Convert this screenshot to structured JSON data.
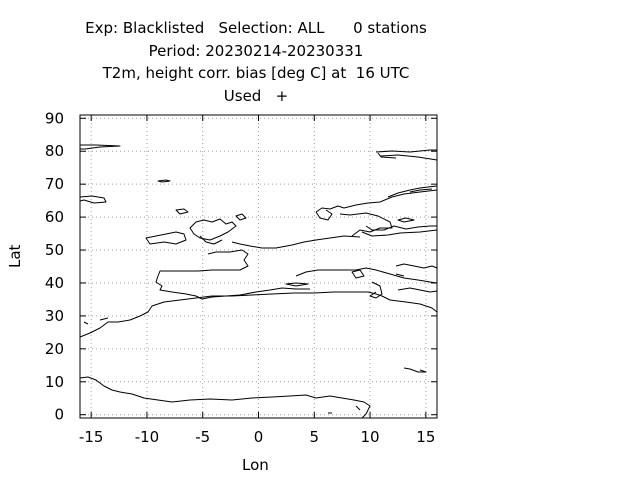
{
  "header": {
    "line1": "Exp: Blacklisted   Selection: ALL      0 stations",
    "line2": "Period: 20230214-20230331",
    "line3": "T2m, height corr. bias [deg C] at  16 UTC",
    "line4": "Used   +"
  },
  "chart_data": {
    "type": "scatter",
    "title": "T2m, height corr. bias [deg C] at  16 UTC",
    "xlabel": "Lon",
    "ylabel": "Lat",
    "xlim": [
      -16,
      16
    ],
    "ylim": [
      -1,
      91
    ],
    "x_ticks": [
      -15,
      -10,
      -5,
      0,
      5,
      10,
      15
    ],
    "y_ticks": [
      0,
      10,
      20,
      30,
      40,
      50,
      60,
      70,
      80,
      90
    ],
    "grid": true,
    "series": [
      {
        "name": "Used",
        "marker": "+",
        "x": [],
        "y": []
      }
    ],
    "coastline_color": "#000000",
    "grid_color": "#a0a0a0"
  }
}
